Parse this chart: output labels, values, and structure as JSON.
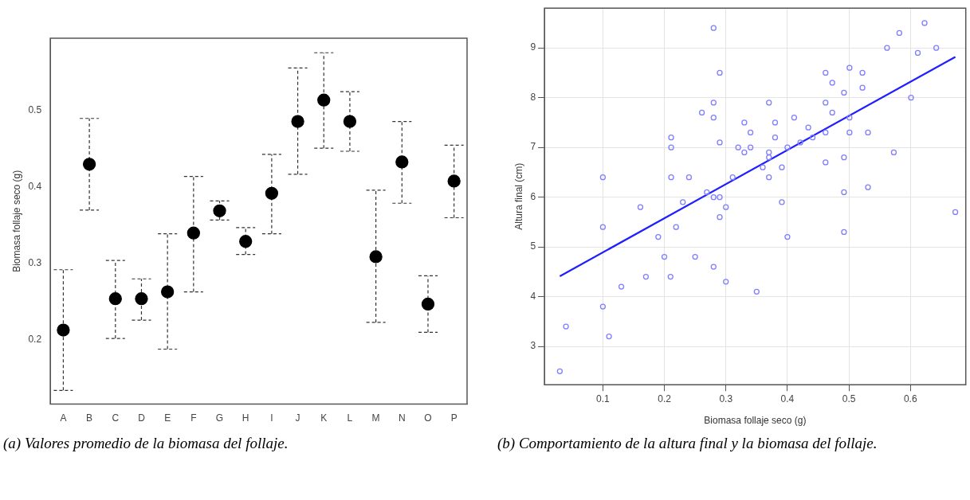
{
  "chart_data": [
    {
      "type": "scatter",
      "categories": [
        "A",
        "B",
        "C",
        "D",
        "E",
        "F",
        "G",
        "H",
        "I",
        "J",
        "K",
        "L",
        "M",
        "N",
        "O",
        "P"
      ],
      "values": [
        0.213,
        0.43,
        0.254,
        0.254,
        0.263,
        0.34,
        0.369,
        0.329,
        0.392,
        0.486,
        0.514,
        0.486,
        0.309,
        0.433,
        0.247,
        0.408
      ],
      "errors": [
        [
          0.134,
          0.292
        ],
        [
          0.37,
          0.49
        ],
        [
          0.202,
          0.304
        ],
        [
          0.226,
          0.28
        ],
        [
          0.188,
          0.339
        ],
        [
          0.263,
          0.414
        ],
        [
          0.357,
          0.382
        ],
        [
          0.312,
          0.347
        ],
        [
          0.339,
          0.443
        ],
        [
          0.417,
          0.556
        ],
        [
          0.451,
          0.576
        ],
        [
          0.447,
          0.525
        ],
        [
          0.223,
          0.396
        ],
        [
          0.379,
          0.486
        ],
        [
          0.21,
          0.284
        ],
        [
          0.36,
          0.455
        ]
      ],
      "color": "#000000",
      "marker": "circle",
      "ylabel": "Biomasa follaje seco (g)",
      "ylim": [
        0.116,
        0.595
      ],
      "yticks": [
        0.2,
        0.3,
        0.4,
        0.5
      ],
      "grid": false,
      "annotations": [
        "(a) Valores promedio de la biomasa del follaje."
      ]
    },
    {
      "type": "scatter",
      "xlabel": "Biomasa follaje seco (g)",
      "ylabel": "Altura final (cm)",
      "grid": true,
      "xlim": [
        0.005,
        0.69
      ],
      "xticks": [
        0.1,
        0.2,
        0.3,
        0.4,
        0.5,
        0.6
      ],
      "ylim": [
        2.23,
        9.8
      ],
      "yticks": [
        3,
        4,
        5,
        6,
        7,
        8,
        9
      ],
      "series": [
        {
          "color": "#7f7fff",
          "marker": "circle",
          "x": [
            0.1,
            0.1,
            0.161,
            0.19,
            0.211,
            0.211,
            0.211,
            0.219,
            0.23,
            0.24,
            0.261,
            0.269,
            0.28,
            0.28,
            0.28,
            0.28,
            0.29,
            0.29,
            0.29,
            0.29,
            0.3,
            0.311,
            0.32,
            0.33,
            0.33,
            0.34,
            0.34,
            0.36,
            0.37,
            0.37,
            0.37,
            0.37,
            0.38,
            0.38,
            0.391,
            0.391,
            0.4,
            0.4,
            0.411,
            0.421,
            0.434,
            0.441,
            0.462,
            0.462,
            0.462,
            0.462,
            0.473,
            0.473,
            0.492,
            0.492,
            0.492,
            0.492,
            0.501,
            0.501,
            0.501,
            0.522,
            0.522,
            0.531,
            0.531,
            0.562,
            0.573,
            0.582,
            0.601,
            0.612,
            0.623,
            0.642,
            0.673,
            0.2,
            0.25,
            0.28,
            0.17,
            0.21,
            0.3,
            0.13,
            0.35,
            0.1,
            0.04,
            0.11,
            0.03
          ],
          "values": [
            6.4,
            5.4,
            5.8,
            5.2,
            7.2,
            7.0,
            6.4,
            5.4,
            5.9,
            6.4,
            7.7,
            6.1,
            9.4,
            7.9,
            7.6,
            6.0,
            8.5,
            7.1,
            6.0,
            5.6,
            5.8,
            6.4,
            7.0,
            7.5,
            6.9,
            7.3,
            7.0,
            6.6,
            7.9,
            6.9,
            6.8,
            6.4,
            7.5,
            7.2,
            6.6,
            5.9,
            7.0,
            5.2,
            7.6,
            7.1,
            7.4,
            7.2,
            8.5,
            7.9,
            7.3,
            6.7,
            8.3,
            7.7,
            8.1,
            6.8,
            6.1,
            5.3,
            8.6,
            7.6,
            7.3,
            8.5,
            8.2,
            7.3,
            6.2,
            9.0,
            6.9,
            9.3,
            8.0,
            8.9,
            9.5,
            9.0,
            5.7,
            4.8,
            4.8,
            4.6,
            4.4,
            4.4,
            4.3,
            4.2,
            4.1,
            3.8,
            3.4,
            3.2,
            2.5
          ]
        },
        {
          "type": "line",
          "marker": "none",
          "color": "#1f1fff",
          "x": [
            0.03,
            0.673
          ],
          "values": [
            4.41,
            8.82
          ]
        }
      ],
      "annotations": [
        "(b) Comportamiento de la altura final y la biomasa del follaje."
      ]
    }
  ]
}
